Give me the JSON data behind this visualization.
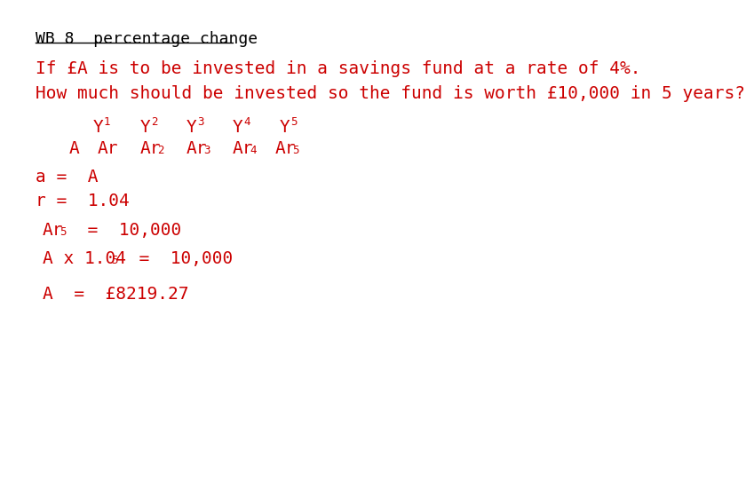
{
  "title": "WB 8  percentage change",
  "line1": "If £A is to be invested in a savings fund at a rate of 4%.",
  "line2": "How much should be invested so the fund is worth £10,000 in 5 years?",
  "bg_color": "#ffffff",
  "title_color": "#000000",
  "body_color": "#cc0000",
  "title_fontsize": 13,
  "body_fontsize": 14,
  "sup_fontsize": 9
}
